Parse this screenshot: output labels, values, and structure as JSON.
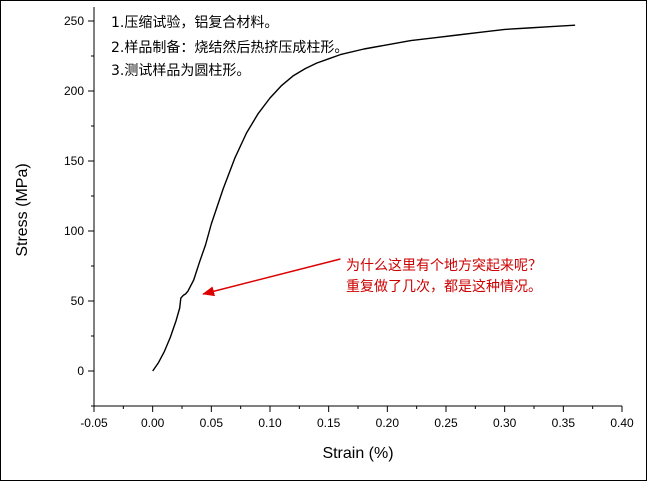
{
  "chart_data": {
    "type": "line",
    "title": "",
    "xlabel": "Strain (%)",
    "ylabel": "Stress (MPa)",
    "xlim": [
      -0.05,
      0.4
    ],
    "ylim": [
      -25,
      260
    ],
    "x_ticks": [
      "-0.05",
      "0.00",
      "0.05",
      "0.10",
      "0.15",
      "0.20",
      "0.25",
      "0.30",
      "0.35",
      "0.40"
    ],
    "y_ticks": [
      "0",
      "50",
      "100",
      "150",
      "200",
      "250"
    ],
    "grid": false,
    "legend": "none",
    "series": [
      {
        "color": "#000000",
        "x": [
          0.0,
          0.005,
          0.01,
          0.015,
          0.02,
          0.023,
          0.024,
          0.026,
          0.028,
          0.03,
          0.035,
          0.04,
          0.045,
          0.05,
          0.06,
          0.07,
          0.08,
          0.09,
          0.1,
          0.11,
          0.12,
          0.13,
          0.14,
          0.15,
          0.16,
          0.18,
          0.2,
          0.22,
          0.24,
          0.26,
          0.28,
          0.3,
          0.32,
          0.34,
          0.36
        ],
        "y": [
          0,
          6,
          14,
          24,
          36,
          45,
          52,
          54,
          55,
          57,
          65,
          78,
          90,
          105,
          130,
          152,
          170,
          184,
          195,
          204,
          211,
          216,
          220,
          223,
          226,
          230,
          233,
          236,
          238,
          240,
          242,
          244,
          245,
          246,
          247
        ]
      }
    ],
    "annotations": {
      "notes": [
        "1.压缩试验，铝复合材料。",
        "2.样品制备：烧结然后热挤压成柱形。",
        "3.测试样品为圆柱形。"
      ],
      "question": [
        "为什么这里有个地方突起来呢？",
        "重复做了几次，都是这种情况。"
      ],
      "question_color": "#cc0000",
      "arrow_color": "#dd0000",
      "arrow_from": [
        0.16,
        80
      ],
      "arrow_to": [
        0.043,
        55
      ]
    }
  }
}
